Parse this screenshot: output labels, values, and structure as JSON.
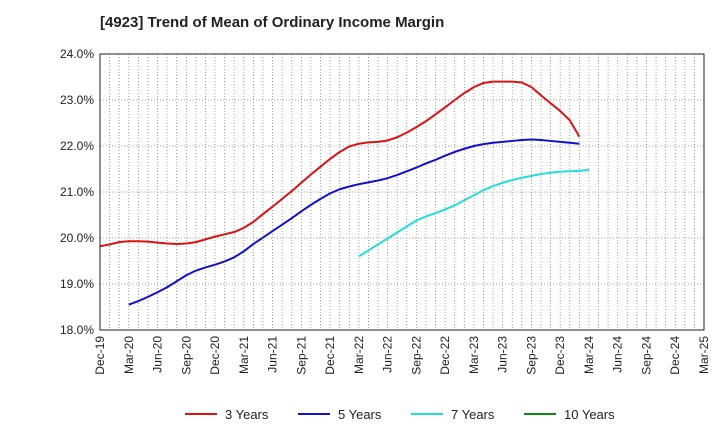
{
  "chart_data": {
    "type": "line",
    "title": "[4923]  Trend of Mean of Ordinary Income Margin",
    "xlabel": "",
    "ylabel": "",
    "ylim": [
      18.0,
      24.0
    ],
    "y_ticks": [
      "18.0%",
      "19.0%",
      "20.0%",
      "21.0%",
      "22.0%",
      "23.0%",
      "24.0%"
    ],
    "x_ticks": [
      "Dec-19",
      "Mar-20",
      "Jun-20",
      "Sep-20",
      "Dec-20",
      "Mar-21",
      "Jun-21",
      "Sep-21",
      "Dec-21",
      "Mar-22",
      "Jun-22",
      "Sep-22",
      "Dec-22",
      "Mar-23",
      "Jun-23",
      "Sep-23",
      "Dec-23",
      "Mar-24",
      "Jun-24",
      "Sep-24",
      "Dec-24",
      "Mar-25"
    ],
    "grid": true,
    "legend_position": "bottom",
    "series": [
      {
        "name": "3 Years",
        "color": "#dd1111",
        "start_index": 0,
        "values": [
          19.82,
          19.86,
          19.91,
          19.93,
          19.93,
          19.92,
          19.9,
          19.88,
          19.87,
          19.88,
          19.91,
          19.97,
          20.03,
          20.08,
          20.13,
          20.22,
          20.35,
          20.52,
          20.68,
          20.85,
          21.02,
          21.2,
          21.38,
          21.55,
          21.72,
          21.87,
          21.99,
          22.05,
          22.08,
          22.09,
          22.12,
          22.19,
          22.29,
          22.41,
          22.54,
          22.69,
          22.84,
          23.0,
          23.15,
          23.28,
          23.37,
          23.4,
          23.4,
          23.4,
          23.38,
          23.28,
          23.1,
          22.93,
          22.76,
          22.56,
          22.2
        ]
      },
      {
        "name": "5 Years",
        "color": "#1111cc",
        "start_index": 3,
        "values": [
          18.55,
          18.63,
          18.72,
          18.82,
          18.93,
          19.06,
          19.19,
          19.29,
          19.36,
          19.42,
          19.49,
          19.58,
          19.71,
          19.87,
          20.01,
          20.15,
          20.29,
          20.43,
          20.58,
          20.72,
          20.85,
          20.97,
          21.06,
          21.12,
          21.17,
          21.21,
          21.25,
          21.3,
          21.37,
          21.45,
          21.53,
          21.62,
          21.7,
          21.79,
          21.87,
          21.94,
          22.0,
          22.04,
          22.07,
          22.09,
          22.11,
          22.13,
          22.14,
          22.13,
          22.11,
          22.09,
          22.07,
          22.05
        ]
      },
      {
        "name": "7 Years",
        "color": "#22dddd",
        "start_index": 27,
        "values": [
          19.6,
          19.73,
          19.86,
          19.99,
          20.12,
          20.25,
          20.38,
          20.47,
          20.54,
          20.62,
          20.71,
          20.82,
          20.93,
          21.04,
          21.13,
          21.2,
          21.26,
          21.31,
          21.35,
          21.39,
          21.42,
          21.44,
          21.45,
          21.46,
          21.48
        ]
      },
      {
        "name": "10 Years",
        "color": "#118811",
        "start_index": 0,
        "values": []
      }
    ]
  }
}
